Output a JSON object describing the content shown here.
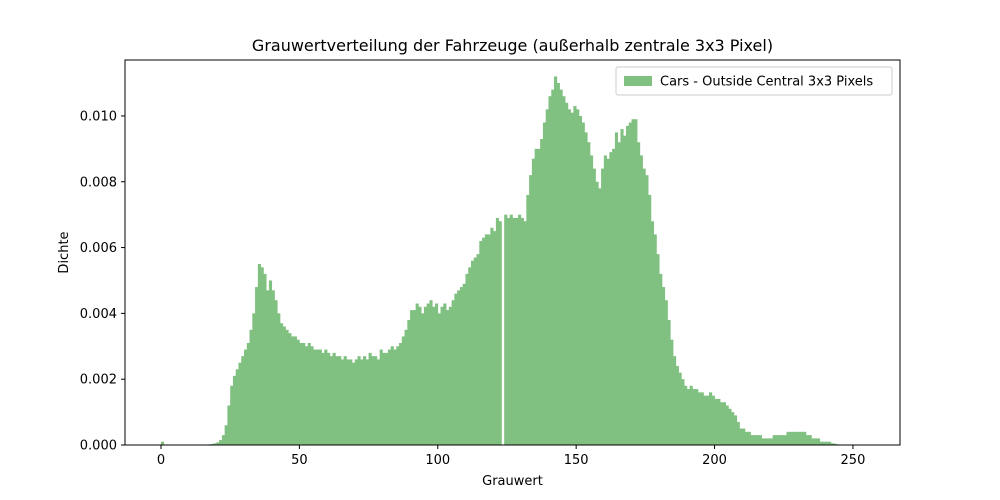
{
  "chart_data": {
    "type": "bar",
    "title": "Grauwertverteilung der Fahrzeuge (außerhalb zentrale 3x3 Pixel)",
    "xlabel": "Grauwert",
    "ylabel": "Dichte",
    "xlim": [
      -13,
      267
    ],
    "ylim": [
      0,
      0.0117
    ],
    "xticks": [
      0,
      50,
      100,
      150,
      200,
      250
    ],
    "xtick_labels": [
      "0",
      "50",
      "100",
      "150",
      "200",
      "250"
    ],
    "yticks": [
      0,
      0.002,
      0.004,
      0.006,
      0.008,
      0.01
    ],
    "ytick_labels": [
      "0.000",
      "0.002",
      "0.004",
      "0.006",
      "0.008",
      "0.010"
    ],
    "grid": false,
    "legend_position": "top-right",
    "bins_start": 0,
    "bin_width": 1,
    "series": [
      {
        "name": "Cars - Outside Central 3x3 Pixels",
        "color": "#80c080",
        "values": [
          0.0001,
          0,
          0,
          0,
          0,
          0,
          0,
          0,
          0,
          0,
          0,
          0,
          0,
          0,
          0,
          0,
          1e-05,
          2e-05,
          3e-05,
          5e-05,
          8e-05,
          0.00015,
          0.0003,
          0.0006,
          0.0012,
          0.0018,
          0.0021,
          0.0023,
          0.0025,
          0.0027,
          0.0029,
          0.0031,
          0.0035,
          0.004,
          0.0048,
          0.0055,
          0.0054,
          0.0052,
          0.0047,
          0.005,
          0.0047,
          0.0044,
          0.004,
          0.0037,
          0.0036,
          0.0035,
          0.0034,
          0.0033,
          0.0033,
          0.0032,
          0.0031,
          0.0031,
          0.003,
          0.0031,
          0.003,
          0.0029,
          0.0029,
          0.0029,
          0.0028,
          0.0029,
          0.0028,
          0.0027,
          0.0028,
          0.0027,
          0.0027,
          0.0026,
          0.0027,
          0.0026,
          0.0026,
          0.0025,
          0.0026,
          0.0027,
          0.0026,
          0.0027,
          0.0026,
          0.0028,
          0.0027,
          0.0027,
          0.0026,
          0.0029,
          0.0028,
          0.0028,
          0.0029,
          0.003,
          0.0029,
          0.003,
          0.0031,
          0.0033,
          0.0035,
          0.0038,
          0.0041,
          0.0041,
          0.0043,
          0.0042,
          0.004,
          0.0042,
          0.0043,
          0.0044,
          0.0042,
          0.0043,
          0.004,
          0.0042,
          0.0043,
          0.0041,
          0.0042,
          0.0044,
          0.0046,
          0.0047,
          0.0048,
          0.0049,
          0.0052,
          0.0054,
          0.0056,
          0.0057,
          0.0058,
          0.0062,
          0.0063,
          0.0064,
          0.0064,
          0.0066,
          0.0065,
          0.0069,
          0.0068,
          0.0,
          0.007,
          0.0069,
          0.007,
          0.0069,
          0.0069,
          0.007,
          0.0069,
          0.0068,
          0.0076,
          0.0082,
          0.0087,
          0.009,
          0.009,
          0.0093,
          0.0098,
          0.0102,
          0.0106,
          0.0108,
          0.0112,
          0.011,
          0.0108,
          0.0106,
          0.0104,
          0.0102,
          0.0101,
          0.0103,
          0.0102,
          0.01,
          0.0098,
          0.0095,
          0.0092,
          0.0088,
          0.0084,
          0.008,
          0.0078,
          0.0084,
          0.0088,
          0.0087,
          0.0089,
          0.009,
          0.0095,
          0.0092,
          0.0096,
          0.0094,
          0.0097,
          0.0098,
          0.0099,
          0.0099,
          0.0092,
          0.0088,
          0.0084,
          0.0082,
          0.0076,
          0.0068,
          0.0064,
          0.0058,
          0.0052,
          0.0048,
          0.0044,
          0.0038,
          0.0032,
          0.0027,
          0.0024,
          0.0022,
          0.002,
          0.0018,
          0.0017,
          0.0018,
          0.0017,
          0.0017,
          0.0016,
          0.0016,
          0.0015,
          0.0015,
          0.0016,
          0.0015,
          0.0014,
          0.0014,
          0.0013,
          0.0013,
          0.0012,
          0.0011,
          0.001,
          0.0009,
          0.0007,
          0.0005,
          0.0005,
          0.0004,
          0.0004,
          0.0003,
          0.0003,
          0.0003,
          0.0003,
          0.0002,
          0.0002,
          0.0002,
          0.0002,
          0.0003,
          0.0003,
          0.0003,
          0.0003,
          0.0003,
          0.0004,
          0.0004,
          0.0004,
          0.0004,
          0.0004,
          0.0004,
          0.0004,
          0.0003,
          0.0003,
          0.0002,
          0.0002,
          0.0002,
          0.0001,
          0.0001,
          0.0001,
          0.0001,
          5e-05,
          4e-05,
          2e-05,
          1e-05
        ]
      }
    ]
  }
}
